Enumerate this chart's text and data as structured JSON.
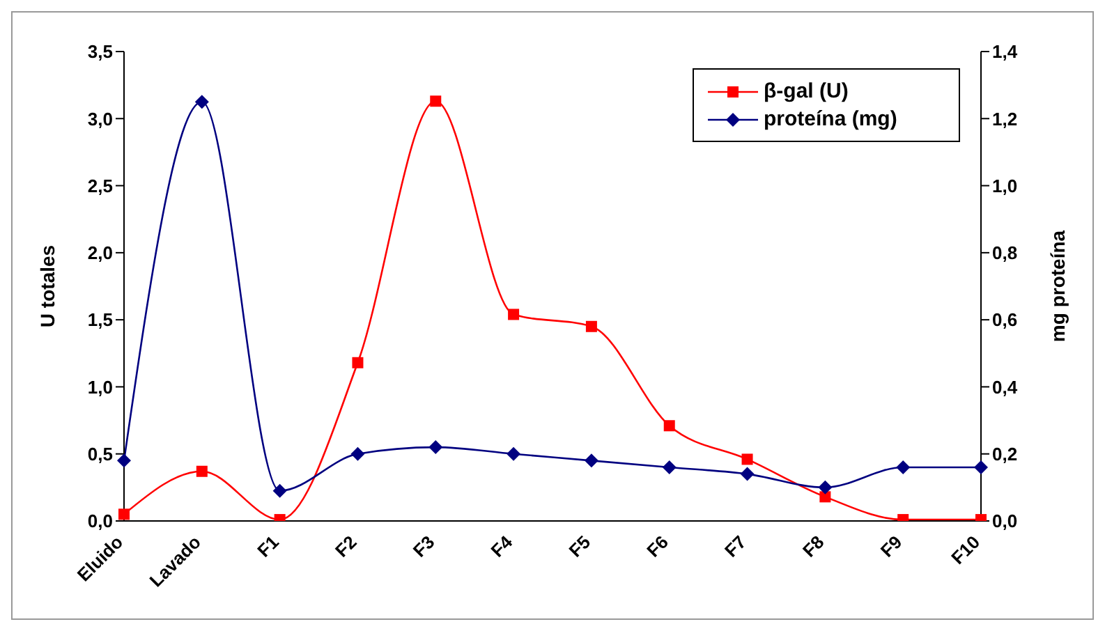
{
  "chart_data": {
    "type": "line",
    "categories": [
      "Eluido",
      "Lavado",
      "F1",
      "F2",
      "F3",
      "F4",
      "F5",
      "F6",
      "F7",
      "F8",
      "F9",
      "F10"
    ],
    "series": [
      {
        "name": "β-gal (U)",
        "color": "#ff0000",
        "marker": "square",
        "values": [
          0.05,
          0.37,
          0.01,
          1.18,
          3.13,
          1.54,
          1.45,
          0.71,
          0.46,
          0.18,
          0.01,
          0.01
        ]
      },
      {
        "name": "proteína (mg)",
        "color": "#000080",
        "marker": "diamond",
        "axis": "y2",
        "values": [
          0.18,
          1.25,
          0.09,
          0.2,
          0.22,
          0.2,
          0.18,
          0.16,
          0.14,
          0.1,
          0.16,
          0.16
        ]
      }
    ],
    "ylabel": "U totales",
    "y2label": "mg proteína",
    "ylim": [
      0,
      3.5
    ],
    "yticks": [
      {
        "value": 0,
        "label": "0,0"
      },
      {
        "value": 0.5,
        "label": "0,5"
      },
      {
        "value": 1,
        "label": "1,0"
      },
      {
        "value": 1.5,
        "label": "1,5"
      },
      {
        "value": 2,
        "label": "2,0"
      },
      {
        "value": 2.5,
        "label": "2,5"
      },
      {
        "value": 3,
        "label": "3,0"
      },
      {
        "value": 3.5,
        "label": "3,5"
      }
    ],
    "y2lim": [
      0,
      1.4
    ],
    "y2ticks": [
      {
        "value": 0,
        "label": "0,0"
      },
      {
        "value": 0.2,
        "label": "0,2"
      },
      {
        "value": 0.4,
        "label": "0,4"
      },
      {
        "value": 0.6,
        "label": "0,6"
      },
      {
        "value": 0.8,
        "label": "0,8"
      },
      {
        "value": 1,
        "label": "1,0"
      },
      {
        "value": 1.2,
        "label": "1,2"
      },
      {
        "value": 1.4,
        "label": "1,4"
      }
    ],
    "grid": false,
    "legend": "top right"
  }
}
